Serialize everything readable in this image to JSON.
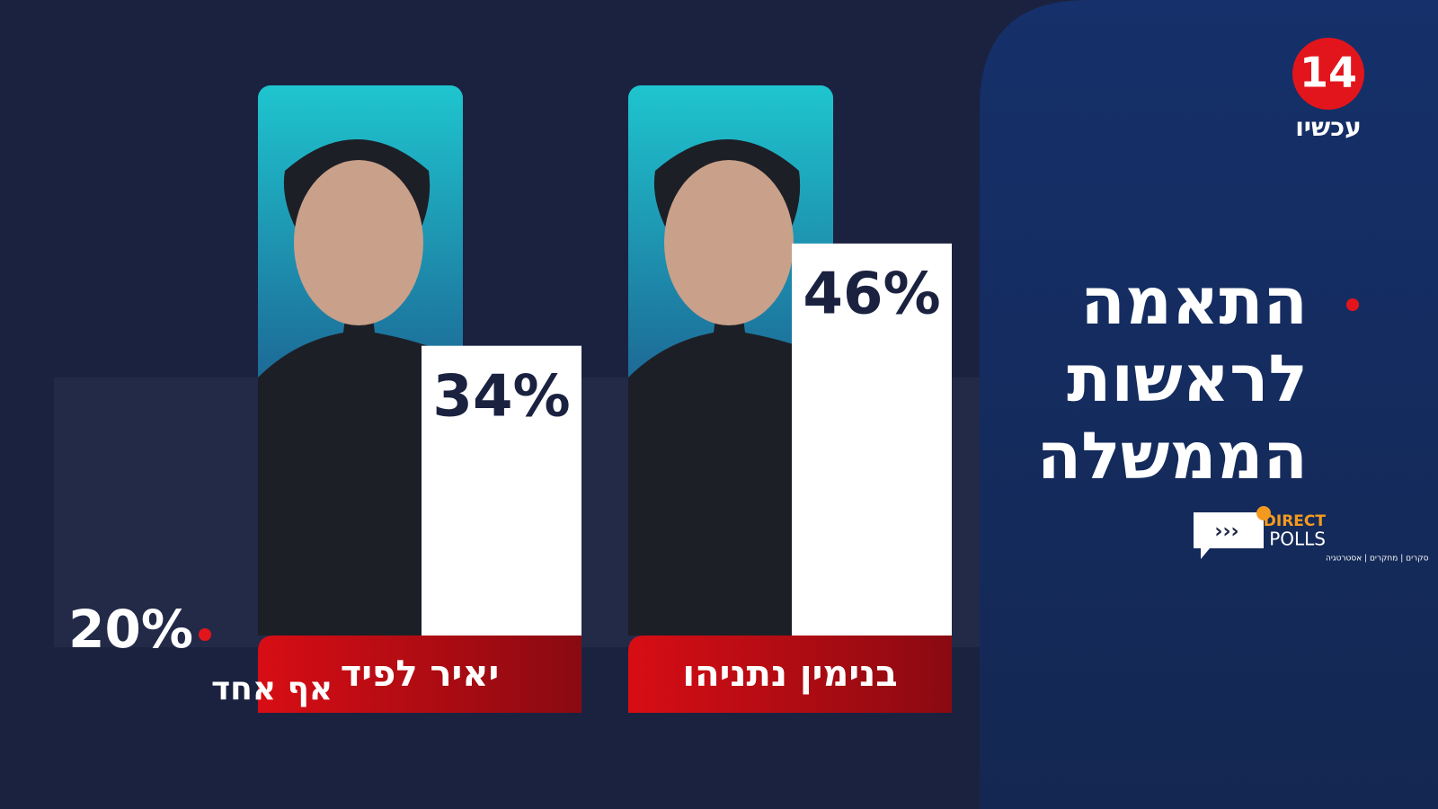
{
  "chart_data": {
    "type": "bar",
    "title": "התאמה לראשות הממשלה",
    "categories": [
      "בנימין נתניהו",
      "יאיר לפיד",
      "אף אחד"
    ],
    "values": [
      46,
      34,
      20
    ],
    "value_labels": [
      "46%",
      "34%",
      "20%"
    ],
    "color": "#ffffff",
    "ylim": [
      0,
      50
    ]
  },
  "logos": {
    "channel_number": "14",
    "channel_name": "עכשיו",
    "pollster_top": "DIRECT",
    "pollster_bottom": "POLLS",
    "pollster_tagline": "סקרים | מחקרים | אסטרטגיה"
  }
}
